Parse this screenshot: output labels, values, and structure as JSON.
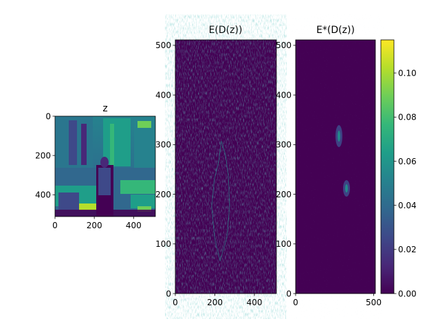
{
  "chart_data": [
    {
      "type": "heatmap",
      "title": "z",
      "xlabel": "",
      "ylabel": "",
      "xlim": [
        0,
        511
      ],
      "ylim": [
        511,
        0
      ],
      "x_ticks": [
        "0",
        "200",
        "400"
      ],
      "y_ticks": [
        "0",
        "200",
        "400"
      ],
      "y_inverted": true,
      "colormap": "viridis",
      "content": "image"
    },
    {
      "type": "heatmap",
      "title": "E(D(z))",
      "xlabel": "",
      "ylabel": "",
      "xlim": [
        0,
        511
      ],
      "ylim": [
        0,
        511
      ],
      "x_ticks": [
        "0",
        "200",
        "400"
      ],
      "y_ticks": [
        "0",
        "100",
        "200",
        "300",
        "400",
        "500"
      ],
      "colormap": "viridis"
    },
    {
      "type": "heatmap",
      "title": "E*(D(z))",
      "xlabel": "",
      "ylabel": "",
      "xlim": [
        0,
        511
      ],
      "ylim": [
        0,
        511
      ],
      "x_ticks": [
        "0",
        "500"
      ],
      "y_ticks": [
        "0",
        "100",
        "200",
        "300",
        "400",
        "500"
      ],
      "colormap": "viridis"
    }
  ],
  "colorbar": {
    "min": 0.0,
    "max": 0.115,
    "ticks": [
      "0.00",
      "0.02",
      "0.04",
      "0.06",
      "0.08",
      "0.10"
    ],
    "colormap": "viridis",
    "stops": [
      "#440154",
      "#482878",
      "#3e4989",
      "#31688e",
      "#26828e",
      "#1f9e89",
      "#35b779",
      "#6ece58",
      "#b5de2b",
      "#fde725"
    ]
  },
  "colors": {
    "background_low": "#440154",
    "mid": "#21918c",
    "high": "#fde725"
  }
}
